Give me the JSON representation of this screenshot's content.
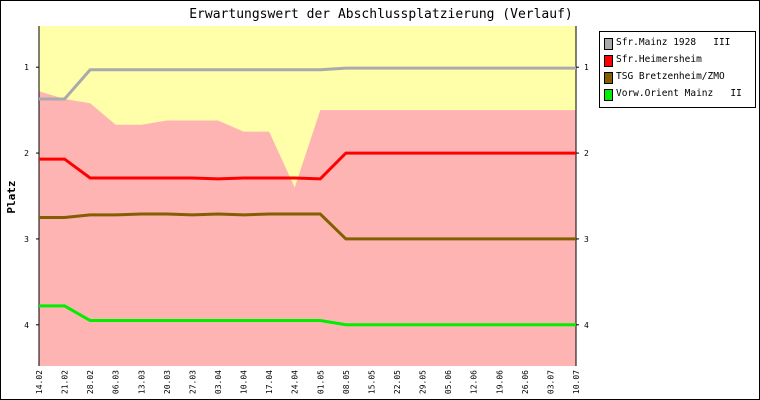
{
  "chart_data": {
    "type": "line",
    "title": "Erwartungswert der Abschlussplatzierung (Verlauf)",
    "ylabel": "Platz",
    "xlabel": "",
    "ylim": [
      4.48,
      0.52
    ],
    "y_ticks": [
      "1",
      "2",
      "3",
      "4"
    ],
    "categories": [
      "14.02",
      "21.02",
      "28.02",
      "06.03",
      "13.03",
      "20.03",
      "27.03",
      "03.04",
      "10.04",
      "17.04",
      "24.04",
      "01.05",
      "08.05",
      "15.05",
      "22.05",
      "29.05",
      "05.06",
      "12.06",
      "19.06",
      "26.06",
      "03.07",
      "10.07"
    ],
    "bands": {
      "yellow_color": "#ffffaa",
      "pink_color": "#ffb4b4",
      "boundary_top": [
        1.28,
        1.37,
        1.42,
        1.67,
        1.67,
        1.62,
        1.62,
        1.62,
        1.75,
        1.75,
        2.4,
        1.5,
        1.5,
        1.5,
        1.5,
        1.5,
        1.5,
        1.5,
        1.5,
        1.5,
        1.5,
        1.5
      ]
    },
    "series": [
      {
        "name": "Sfr.Mainz 1928   III",
        "color": "#aaaaaa",
        "values": [
          1.37,
          1.37,
          1.03,
          1.03,
          1.03,
          1.03,
          1.03,
          1.03,
          1.03,
          1.03,
          1.03,
          1.03,
          1.01,
          1.01,
          1.01,
          1.01,
          1.01,
          1.01,
          1.01,
          1.01,
          1.01,
          1.01
        ]
      },
      {
        "name": "Sfr.Heimersheim",
        "color": "#ff0000",
        "values": [
          2.07,
          2.07,
          2.29,
          2.29,
          2.29,
          2.29,
          2.29,
          2.3,
          2.29,
          2.29,
          2.29,
          2.3,
          2.0,
          2.0,
          2.0,
          2.0,
          2.0,
          2.0,
          2.0,
          2.0,
          2.0,
          2.0
        ]
      },
      {
        "name": "TSG Bretzenheim/ZMO",
        "color": "#806000",
        "values": [
          2.75,
          2.75,
          2.72,
          2.72,
          2.71,
          2.71,
          2.72,
          2.71,
          2.72,
          2.71,
          2.71,
          2.71,
          3.0,
          3.0,
          3.0,
          3.0,
          3.0,
          3.0,
          3.0,
          3.0,
          3.0,
          3.0
        ]
      },
      {
        "name": "Vorw.Orient Mainz   II",
        "color": "#00ee00",
        "values": [
          3.78,
          3.78,
          3.95,
          3.95,
          3.95,
          3.95,
          3.95,
          3.95,
          3.95,
          3.95,
          3.95,
          3.95,
          4.0,
          4.0,
          4.0,
          4.0,
          4.0,
          4.0,
          4.0,
          4.0,
          4.0,
          4.0
        ]
      }
    ],
    "legend_position": "right"
  }
}
